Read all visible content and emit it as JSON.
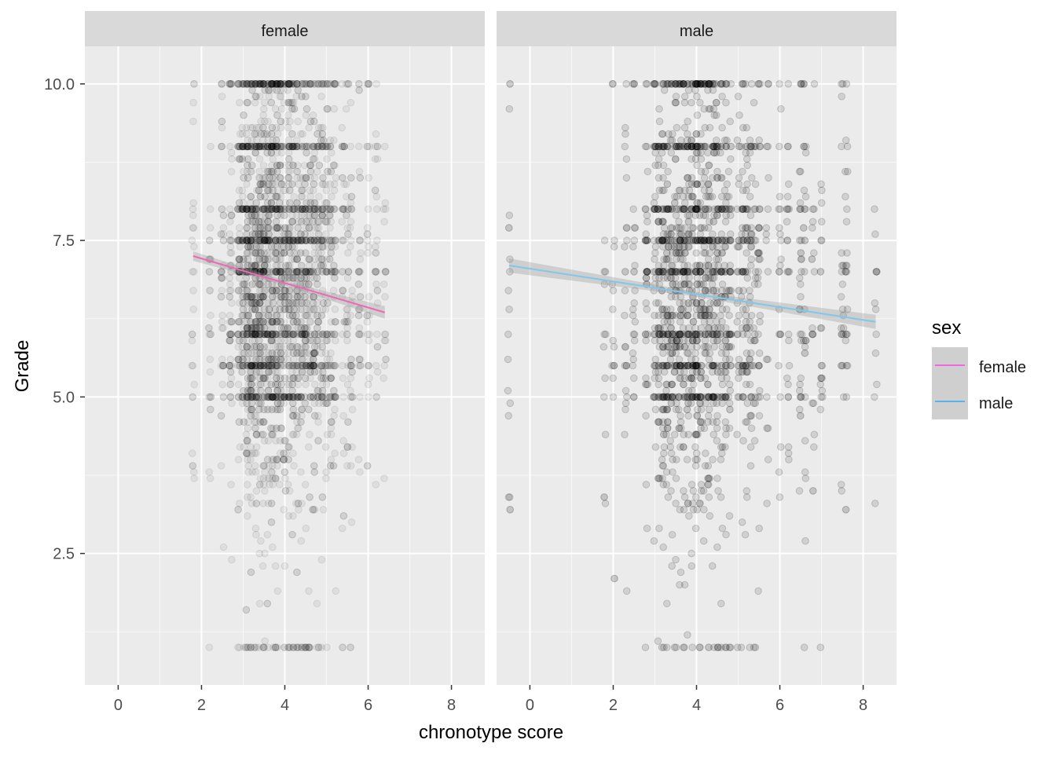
{
  "chart_data": {
    "type": "scatter",
    "xlabel": "chronotype score",
    "ylabel": "Grade",
    "xlim": [
      -0.8,
      8.8
    ],
    "ylim": [
      0.4,
      10.6
    ],
    "x_ticks": [
      0,
      2,
      4,
      6,
      8
    ],
    "x_tick_labels": [
      "0",
      "2",
      "4",
      "6",
      "8"
    ],
    "y_ticks": [
      2.5,
      5.0,
      7.5,
      10.0
    ],
    "y_tick_labels": [
      "2.5",
      "5.0",
      "7.5",
      "10.0"
    ],
    "grid": true,
    "legend": {
      "title": "sex",
      "placement": "right",
      "entries": [
        {
          "label": "female",
          "color": "#f564e3"
        },
        {
          "label": "male",
          "color": "#56b4e9"
        }
      ]
    },
    "point_color": "#000000",
    "point_alpha": 0.06,
    "panels": [
      {
        "strip": "female",
        "series_name": "female",
        "line_color": "#ef67b5",
        "trend": {
          "x": [
            1.8,
            6.4
          ],
          "y": [
            7.25,
            6.35
          ]
        },
        "x_columns": [
          1.8,
          2.2,
          2.5,
          2.7,
          2.9,
          3.0,
          3.1,
          3.2,
          3.3,
          3.4,
          3.5,
          3.6,
          3.7,
          3.8,
          3.9,
          4.0,
          4.1,
          4.2,
          4.3,
          4.4,
          4.5,
          4.6,
          4.7,
          4.8,
          4.9,
          5.0,
          5.1,
          5.2,
          5.4,
          5.5,
          5.6,
          5.8,
          6.0,
          6.2,
          6.4
        ],
        "x_weights": [
          0.35,
          0.5,
          0.8,
          1.2,
          1.6,
          2.2,
          2.6,
          2.8,
          3.0,
          3.0,
          3.0,
          2.9,
          2.8,
          2.6,
          2.5,
          2.4,
          2.3,
          2.2,
          2.1,
          2.0,
          2.2,
          1.8,
          1.6,
          1.5,
          1.4,
          1.3,
          1.1,
          1.0,
          0.8,
          0.7,
          0.6,
          0.5,
          0.5,
          0.4,
          0.4
        ],
        "grade_mean": 6.75,
        "grade_sd": 1.7,
        "n_points": 3600
      },
      {
        "strip": "male",
        "series_name": "male",
        "line_color": "#7fc8e8",
        "trend": {
          "x": [
            -0.5,
            8.3
          ],
          "y": [
            7.1,
            6.2
          ]
        },
        "x_columns": [
          -0.5,
          1.8,
          2.0,
          2.3,
          2.5,
          2.8,
          3.0,
          3.1,
          3.2,
          3.3,
          3.4,
          3.5,
          3.6,
          3.7,
          3.8,
          3.9,
          4.0,
          4.1,
          4.2,
          4.3,
          4.4,
          4.5,
          4.6,
          4.7,
          4.8,
          5.0,
          5.1,
          5.2,
          5.3,
          5.4,
          5.5,
          5.7,
          6.0,
          6.2,
          6.5,
          6.6,
          6.8,
          7.0,
          7.5,
          7.6,
          8.3
        ],
        "x_weights": [
          0.4,
          0.5,
          0.6,
          0.8,
          0.9,
          1.4,
          2.0,
          2.2,
          2.4,
          2.5,
          2.6,
          2.6,
          2.6,
          2.7,
          2.8,
          2.9,
          3.0,
          3.0,
          2.9,
          2.8,
          2.6,
          2.4,
          2.2,
          2.0,
          1.8,
          1.6,
          1.5,
          1.4,
          1.3,
          1.2,
          1.1,
          1.0,
          0.9,
          0.8,
          1.4,
          1.2,
          0.8,
          0.8,
          0.7,
          0.6,
          0.5
        ],
        "grade_mean": 6.5,
        "grade_sd": 1.8,
        "n_points": 3800
      }
    ]
  }
}
